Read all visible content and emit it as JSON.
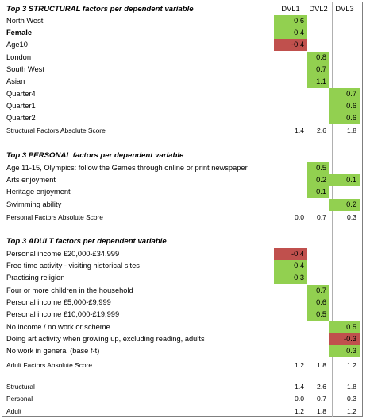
{
  "columns": [
    "DVL1",
    "DVL2",
    "DVL3"
  ],
  "colors": {
    "positive": "#92d050",
    "negative": "#c0504d"
  },
  "rows": [
    {
      "type": "header",
      "label": "Top 3 STRUCTURAL factors per dependent variable",
      "values": [
        "DVL1",
        "DVL2",
        "DVL3"
      ]
    },
    {
      "type": "data",
      "label": "North  West",
      "values": [
        "0.6",
        "",
        ""
      ],
      "fills": [
        "pos",
        "",
        ""
      ]
    },
    {
      "type": "data",
      "label": "Female",
      "bold": true,
      "values": [
        "0.4",
        "",
        ""
      ],
      "fills": [
        "pos",
        "",
        ""
      ]
    },
    {
      "type": "data",
      "label": "Age10",
      "values": [
        "-0.4",
        "",
        ""
      ],
      "fills": [
        "neg",
        "",
        ""
      ]
    },
    {
      "type": "data",
      "label": "London",
      "values": [
        "",
        "0.8",
        ""
      ],
      "fills": [
        "",
        "pos",
        ""
      ]
    },
    {
      "type": "data",
      "label": "South West",
      "values": [
        "",
        "0.7",
        ""
      ],
      "fills": [
        "",
        "pos",
        ""
      ]
    },
    {
      "type": "data",
      "label": "Asian",
      "values": [
        "",
        "1.1",
        ""
      ],
      "fills": [
        "",
        "pos",
        ""
      ]
    },
    {
      "type": "data",
      "label": "Quarter4",
      "values": [
        "",
        "",
        "0.7"
      ],
      "fills": [
        "",
        "",
        "pos"
      ]
    },
    {
      "type": "data",
      "label": "Quarter1",
      "values": [
        "",
        "",
        "0.6"
      ],
      "fills": [
        "",
        "",
        "pos"
      ]
    },
    {
      "type": "data",
      "label": "Quarter2",
      "values": [
        "",
        "",
        "0.6"
      ],
      "fills": [
        "",
        "",
        "pos"
      ]
    },
    {
      "type": "score",
      "label": "Structural Factors Absolute Score",
      "values": [
        "1.4",
        "2.6",
        "1.8"
      ]
    },
    {
      "type": "header",
      "label": "Top 3 PERSONAL factors per dependent variable",
      "values": [
        "",
        "",
        ""
      ]
    },
    {
      "type": "data",
      "label": "Age 11-15, Olympics: follow the Games through online or print newspaper",
      "values": [
        "",
        "0.5",
        ""
      ],
      "fills": [
        "",
        "pos",
        ""
      ]
    },
    {
      "type": "data",
      "label": "Arts enjoyment",
      "values": [
        "",
        "0.2",
        "0.1"
      ],
      "fills": [
        "",
        "pos",
        "pos"
      ]
    },
    {
      "type": "data",
      "label": "Heritage enjoyment",
      "values": [
        "",
        "0.1",
        ""
      ],
      "fills": [
        "",
        "pos",
        ""
      ]
    },
    {
      "type": "data",
      "label": "Swimming ability",
      "values": [
        "",
        "",
        "0.2"
      ],
      "fills": [
        "",
        "",
        "pos"
      ]
    },
    {
      "type": "score",
      "label": "Personal Factors Absolute Score",
      "values": [
        "0.0",
        "0.7",
        "0.3"
      ]
    },
    {
      "type": "header",
      "label": "Top 3 ADULT factors per dependent variable",
      "values": [
        "",
        "",
        ""
      ]
    },
    {
      "type": "data",
      "label": "Personal income  £20,000-£34,999",
      "values": [
        "-0.4",
        "",
        ""
      ],
      "fills": [
        "neg",
        "",
        ""
      ]
    },
    {
      "type": "data",
      "label": "Free time activity - visiting historical sites",
      "values": [
        "0.4",
        "",
        ""
      ],
      "fills": [
        "pos",
        "",
        ""
      ]
    },
    {
      "type": "data",
      "label": "Practising religion",
      "values": [
        "0.3",
        "",
        ""
      ],
      "fills": [
        "pos",
        "",
        ""
      ]
    },
    {
      "type": "data",
      "label": "Four or more  children  in the household",
      "values": [
        "",
        "0.7",
        ""
      ],
      "fills": [
        "",
        "pos",
        ""
      ]
    },
    {
      "type": "data",
      "label": "Personal income  £5,000-£9,999",
      "values": [
        "",
        "0.6",
        ""
      ],
      "fills": [
        "",
        "pos",
        ""
      ]
    },
    {
      "type": "data",
      "label": "Personal income  £10,000-£19,999",
      "values": [
        "",
        "0.5",
        ""
      ],
      "fills": [
        "",
        "pos",
        ""
      ]
    },
    {
      "type": "data",
      "label": "No income / no work or scheme",
      "values": [
        "",
        "",
        "0.5"
      ],
      "fills": [
        "",
        "",
        "pos"
      ]
    },
    {
      "type": "data",
      "label": "Doing art activity when growing up, excluding reading, adults",
      "values": [
        "",
        "",
        "-0.3"
      ],
      "fills": [
        "",
        "",
        "neg"
      ]
    },
    {
      "type": "data",
      "label": "No work in general (base f-t)",
      "values": [
        "",
        "",
        "0.3"
      ],
      "fills": [
        "",
        "",
        "pos"
      ]
    },
    {
      "type": "score",
      "label": "Adult Factors Absolute Score",
      "values": [
        "1.2",
        "1.8",
        "1.2"
      ]
    },
    {
      "type": "summary",
      "label": "Structural",
      "values": [
        "1.4",
        "2.6",
        "1.8"
      ]
    },
    {
      "type": "summary",
      "label": "Personal",
      "values": [
        "0.0",
        "0.7",
        "0.3"
      ]
    },
    {
      "type": "summary",
      "label": "Adult",
      "values": [
        "1.2",
        "1.8",
        "1.2"
      ]
    }
  ]
}
